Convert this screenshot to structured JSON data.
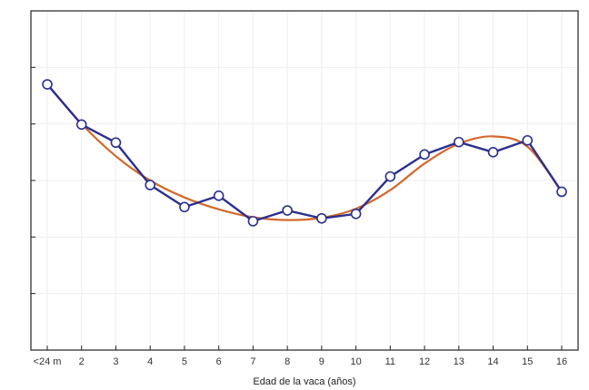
{
  "chart_data": {
    "type": "line",
    "title": "",
    "xlabel": "Edad de la vaca (años)",
    "ylabel": "",
    "categories": [
      "<24 m",
      "2",
      "3",
      "4",
      "5",
      "6",
      "7",
      "8",
      "9",
      "10",
      "11",
      "12",
      "13",
      "14",
      "15",
      "16"
    ],
    "yticks": [
      "",
      "",
      "",
      "",
      "",
      "",
      ""
    ],
    "xlim": [
      0,
      16
    ],
    "ylim": [
      0,
      6
    ],
    "grid": true,
    "series": [
      {
        "name": "",
        "kind": "observed",
        "color": "#2b2f8f",
        "values": [
          4.7,
          3.99,
          3.67,
          2.92,
          2.53,
          2.73,
          2.28,
          2.47,
          2.33,
          2.41,
          3.07,
          3.46,
          3.68,
          3.5,
          3.71,
          2.8
        ]
      },
      {
        "name": "",
        "kind": "fitted",
        "color": "#d2692d",
        "values": [
          4.7,
          4.0,
          3.43,
          3.0,
          2.7,
          2.49,
          2.35,
          2.3,
          2.34,
          2.5,
          2.83,
          3.3,
          3.65,
          3.78,
          3.6,
          2.8
        ]
      }
    ]
  },
  "colors": {
    "background": "#ffffff",
    "frame": "#222222",
    "grid": "#eeeeee",
    "marker_fill": "#ffffff"
  }
}
